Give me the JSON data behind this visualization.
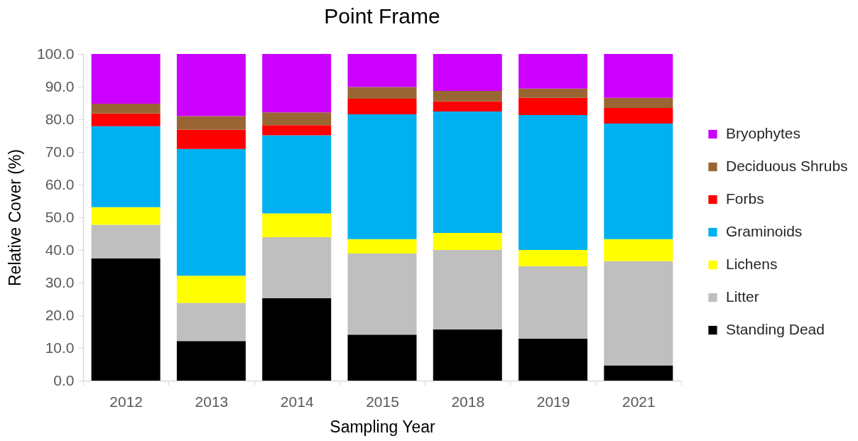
{
  "chart_data": {
    "type": "bar",
    "title": "Point Frame",
    "xlabel": "Sampling Year",
    "ylabel": "Relative Cover (%)",
    "categories": [
      "2012",
      "2013",
      "2014",
      "2015",
      "2018",
      "2019",
      "2021"
    ],
    "stacked": true,
    "grid": false,
    "legend": "right",
    "ylim": [
      0,
      100
    ],
    "yticks": [
      {
        "value": 0,
        "label": "0.0"
      },
      {
        "value": 10,
        "label": "10.0"
      },
      {
        "value": 20,
        "label": "20.0"
      },
      {
        "value": 30,
        "label": "30.0"
      },
      {
        "value": 40,
        "label": "40.0"
      },
      {
        "value": 50,
        "label": "50.0"
      },
      {
        "value": 60,
        "label": "60.0"
      },
      {
        "value": 70,
        "label": "70.0"
      },
      {
        "value": 80,
        "label": "80.0"
      },
      {
        "value": 90,
        "label": "90.0"
      },
      {
        "value": 100,
        "label": "100.0"
      }
    ],
    "series": [
      {
        "name": "Standing Dead",
        "color": "#000000",
        "values": [
          37.4,
          12.1,
          25.2,
          14.1,
          15.7,
          12.9,
          4.7
        ]
      },
      {
        "name": "Litter",
        "color": "#bfbfbf",
        "values": [
          10.3,
          11.7,
          18.7,
          24.8,
          24.3,
          22.1,
          31.9
        ]
      },
      {
        "name": "Lichens",
        "color": "#ffff00",
        "values": [
          5.4,
          8.3,
          7.3,
          4.4,
          5.2,
          5.0,
          6.7
        ]
      },
      {
        "name": "Graminoids",
        "color": "#00b0f0",
        "values": [
          24.8,
          38.8,
          23.9,
          38.2,
          37.2,
          41.3,
          35.4
        ]
      },
      {
        "name": "Forbs",
        "color": "#ff0000",
        "values": [
          3.9,
          5.9,
          3.1,
          4.8,
          3.1,
          5.3,
          4.8
        ]
      },
      {
        "name": "Deciduous Shrubs",
        "color": "#996633",
        "values": [
          3.0,
          4.2,
          3.9,
          3.6,
          3.2,
          2.8,
          3.1
        ]
      },
      {
        "name": "Bryophytes",
        "color": "#cc00ff",
        "values": [
          15.2,
          19.0,
          17.9,
          10.1,
          11.3,
          10.6,
          13.4
        ]
      }
    ]
  }
}
